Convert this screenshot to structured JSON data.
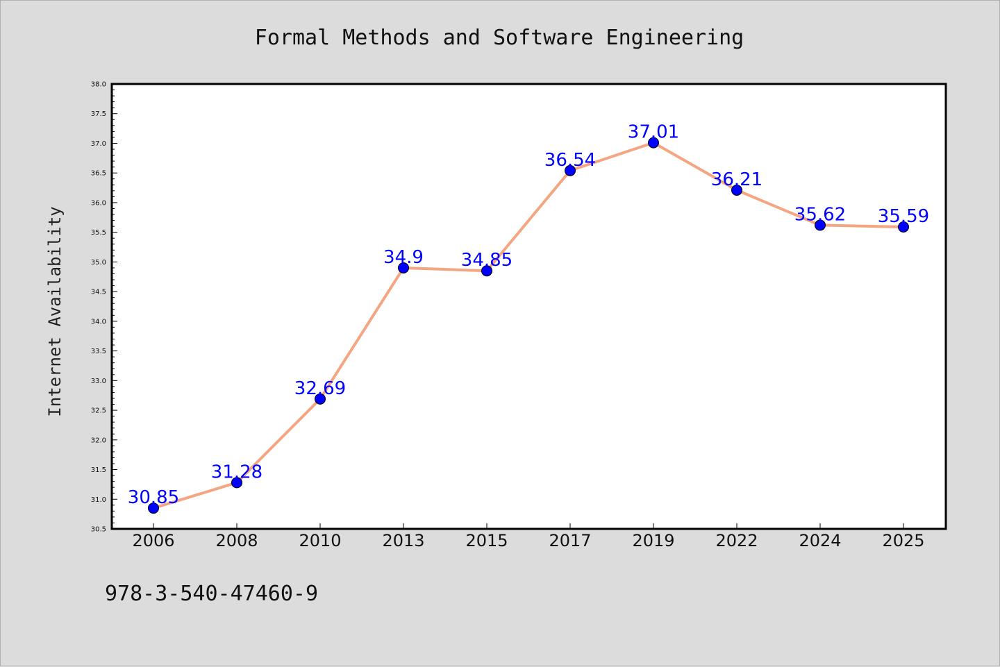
{
  "chart_data": {
    "type": "line",
    "title": "Formal Methods and Software Engineering",
    "xlabel": "",
    "ylabel": "Internet Availability",
    "categories": [
      "2006",
      "2008",
      "2010",
      "2013",
      "2015",
      "2017",
      "2019",
      "2022",
      "2024",
      "2025"
    ],
    "series": [
      {
        "values": [
          30.85,
          31.28,
          32.69,
          34.9,
          34.85,
          36.54,
          37.01,
          36.21,
          35.62,
          35.59
        ],
        "data_labels": [
          "30.85",
          "31.28",
          "32.69",
          "34.9",
          "34.85",
          "36.54",
          "37.01",
          "36.21",
          "35.62",
          "35.59"
        ]
      }
    ],
    "ylim": [
      30.5,
      38.0
    ],
    "yticks": [
      "30.5",
      "31.0",
      "31.5",
      "32.0",
      "32.5",
      "33.0",
      "33.5",
      "34.0",
      "34.5",
      "35.0",
      "35.5",
      "36.0",
      "36.5",
      "37.0",
      "37.5",
      "38.0"
    ],
    "grid": false,
    "legend": "none",
    "annotation": "978-3-540-47460-9"
  },
  "colors": {
    "background": "#dcdcdc",
    "plot_background": "#ffffff",
    "line": "#f4a582",
    "marker": "#0000ff",
    "data_label": "#0000ff",
    "axis": "#000000"
  }
}
